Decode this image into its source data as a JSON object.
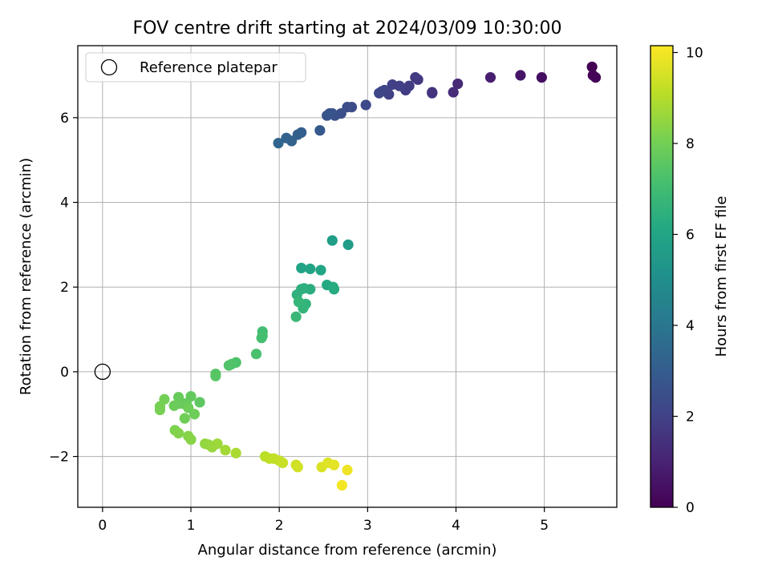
{
  "chart_data": {
    "type": "scatter",
    "title": "FOV centre drift starting at 2024/03/09 10:30:00",
    "xlabel": "Angular distance from reference (arcmin)",
    "ylabel": "Rotation from reference (arcmin)",
    "xlim": [
      -0.28,
      5.82
    ],
    "ylim": [
      -3.2,
      7.7
    ],
    "xticks": [
      0,
      1,
      2,
      3,
      4,
      5
    ],
    "yticks": [
      -2,
      0,
      2,
      4,
      6
    ],
    "grid": true,
    "legend": {
      "location": "upper-left",
      "entries": [
        "Reference platepar"
      ]
    },
    "reference_point": {
      "x": 0,
      "y": 0,
      "marker": "open-circle"
    },
    "colorbar": {
      "label": "Hours from first FF file",
      "colormap": "viridis",
      "range": [
        0,
        10.15
      ],
      "ticks": [
        0,
        2,
        4,
        6,
        8,
        10
      ]
    },
    "series": [
      {
        "points": [
          [
            5.54,
            7.2,
            0.0
          ],
          [
            5.55,
            7.0,
            0.05
          ],
          [
            5.58,
            6.95,
            0.1
          ],
          [
            4.97,
            6.95,
            0.4
          ],
          [
            4.73,
            7.0,
            0.6
          ],
          [
            4.39,
            6.95,
            0.9
          ],
          [
            4.02,
            6.8,
            1.2
          ],
          [
            3.97,
            6.6,
            1.3
          ],
          [
            3.73,
            6.6,
            1.5
          ],
          [
            3.73,
            6.58,
            1.55
          ],
          [
            3.57,
            6.9,
            1.7
          ],
          [
            3.54,
            6.95,
            1.75
          ],
          [
            3.47,
            6.75,
            1.8
          ],
          [
            3.43,
            6.65,
            1.85
          ],
          [
            3.36,
            6.75,
            1.9
          ],
          [
            3.28,
            6.78,
            1.95
          ],
          [
            3.24,
            6.55,
            2.0
          ],
          [
            3.19,
            6.65,
            2.05
          ],
          [
            3.16,
            6.62,
            2.1
          ],
          [
            3.13,
            6.58,
            2.15
          ],
          [
            2.98,
            6.3,
            2.25
          ],
          [
            2.82,
            6.25,
            2.35
          ],
          [
            2.77,
            6.25,
            2.4
          ],
          [
            2.7,
            6.1,
            2.45
          ],
          [
            2.63,
            6.05,
            2.55
          ],
          [
            2.6,
            6.1,
            2.6
          ],
          [
            2.57,
            6.1,
            2.65
          ],
          [
            2.54,
            6.05,
            2.7
          ],
          [
            2.46,
            5.7,
            2.85
          ],
          [
            2.25,
            5.65,
            3.05
          ],
          [
            2.21,
            5.6,
            3.1
          ],
          [
            2.14,
            5.45,
            3.2
          ],
          [
            2.08,
            5.52,
            3.25
          ],
          [
            1.99,
            5.4,
            3.3
          ],
          [
            2.78,
            3.0,
            5.6
          ],
          [
            2.6,
            3.1,
            5.7
          ],
          [
            2.25,
            2.45,
            5.9
          ],
          [
            2.35,
            2.43,
            5.95
          ],
          [
            2.47,
            2.4,
            6.0
          ],
          [
            2.54,
            2.05,
            6.15
          ],
          [
            2.62,
            1.95,
            6.2
          ],
          [
            2.61,
            2.0,
            6.25
          ],
          [
            2.35,
            1.95,
            6.35
          ],
          [
            2.28,
            1.97,
            6.4
          ],
          [
            2.25,
            1.95,
            6.45
          ],
          [
            2.2,
            1.82,
            6.5
          ],
          [
            2.3,
            1.6,
            6.6
          ],
          [
            2.27,
            1.5,
            6.65
          ],
          [
            2.22,
            1.65,
            6.7
          ],
          [
            2.19,
            1.3,
            6.8
          ],
          [
            1.81,
            0.95,
            7.05
          ],
          [
            1.81,
            0.85,
            7.1
          ],
          [
            1.8,
            0.8,
            7.12
          ],
          [
            1.74,
            0.42,
            7.2
          ],
          [
            1.51,
            0.22,
            7.3
          ],
          [
            1.46,
            0.18,
            7.35
          ],
          [
            1.43,
            0.15,
            7.38
          ],
          [
            1.28,
            -0.05,
            7.45
          ],
          [
            1.28,
            -0.1,
            7.48
          ],
          [
            1.1,
            -0.72,
            7.6
          ],
          [
            1.0,
            -0.58,
            7.7
          ],
          [
            0.95,
            -0.75,
            7.72
          ],
          [
            0.91,
            -0.75,
            7.75
          ],
          [
            0.86,
            -0.6,
            7.78
          ],
          [
            0.86,
            -0.75,
            7.8
          ],
          [
            0.81,
            -0.8,
            7.85
          ],
          [
            0.97,
            -0.85,
            7.88
          ],
          [
            1.04,
            -1.0,
            7.9
          ],
          [
            0.93,
            -1.1,
            7.95
          ],
          [
            0.7,
            -0.65,
            8.0
          ],
          [
            0.65,
            -0.82,
            8.05
          ],
          [
            0.65,
            -0.9,
            8.08
          ],
          [
            0.82,
            -1.38,
            8.2
          ],
          [
            0.86,
            -1.45,
            8.25
          ],
          [
            0.97,
            -1.52,
            8.3
          ],
          [
            1.0,
            -1.6,
            8.35
          ],
          [
            1.16,
            -1.7,
            8.5
          ],
          [
            1.2,
            -1.72,
            8.55
          ],
          [
            1.24,
            -1.78,
            8.6
          ],
          [
            1.3,
            -1.7,
            8.65
          ],
          [
            1.39,
            -1.85,
            8.75
          ],
          [
            1.51,
            -1.92,
            8.85
          ],
          [
            1.84,
            -2.0,
            9.1
          ],
          [
            1.89,
            -2.05,
            9.15
          ],
          [
            1.94,
            -2.05,
            9.2
          ],
          [
            2.0,
            -2.1,
            9.25
          ],
          [
            2.04,
            -2.15,
            9.3
          ],
          [
            2.19,
            -2.2,
            9.4
          ],
          [
            2.21,
            -2.25,
            9.45
          ],
          [
            2.48,
            -2.25,
            9.6
          ],
          [
            2.55,
            -2.15,
            9.65
          ],
          [
            2.62,
            -2.2,
            9.75
          ],
          [
            2.77,
            -2.32,
            9.9
          ],
          [
            2.71,
            -2.68,
            10.0
          ]
        ]
      }
    ]
  }
}
